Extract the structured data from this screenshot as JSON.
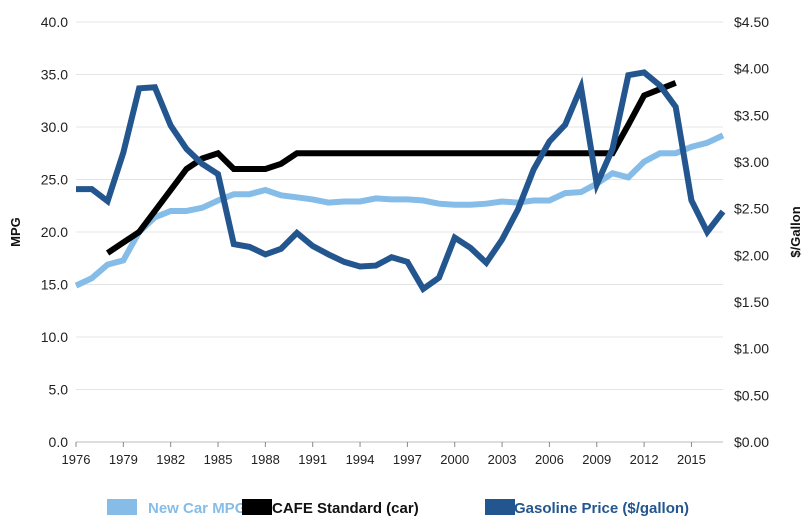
{
  "chart_data": {
    "type": "line",
    "title": "",
    "xlabel": "",
    "ylabel": "MPG",
    "y2label": "$/Gallon",
    "xlim": [
      1976,
      2017
    ],
    "ylim": [
      0,
      40
    ],
    "y2lim": [
      0,
      4.5
    ],
    "grid": true,
    "legend_position": "bottom",
    "x_ticks": [
      "1976",
      "1979",
      "1982",
      "1985",
      "1988",
      "1991",
      "1994",
      "1997",
      "2000",
      "2003",
      "2006",
      "2009",
      "2012",
      "2015"
    ],
    "y_ticks": [
      "0.0",
      "5.0",
      "10.0",
      "15.0",
      "20.0",
      "25.0",
      "30.0",
      "35.0",
      "40.0"
    ],
    "y2_ticks": [
      "$0.00",
      "$0.50",
      "$1.00",
      "$1.50",
      "$2.00",
      "$2.50",
      "$3.00",
      "$3.50",
      "$4.00",
      "$4.50"
    ],
    "series": [
      {
        "name": "New Car MPG",
        "axis": "left",
        "color": "#85bde8",
        "x": [
          1976,
          1977,
          1978,
          1979,
          1980,
          1981,
          1982,
          1983,
          1984,
          1985,
          1986,
          1987,
          1988,
          1989,
          1990,
          1991,
          1992,
          1993,
          1994,
          1995,
          1996,
          1997,
          1998,
          1999,
          2000,
          2001,
          2002,
          2003,
          2004,
          2005,
          2006,
          2007,
          2008,
          2009,
          2010,
          2011,
          2012,
          2013,
          2014,
          2015,
          2016,
          2017
        ],
        "values": [
          14.9,
          15.6,
          16.9,
          17.3,
          20.0,
          21.4,
          22.0,
          22.0,
          22.3,
          23.0,
          23.6,
          23.6,
          24.0,
          23.5,
          23.3,
          23.1,
          22.8,
          22.9,
          22.9,
          23.2,
          23.1,
          23.1,
          23.0,
          22.7,
          22.6,
          22.6,
          22.7,
          22.9,
          22.8,
          23.0,
          23.0,
          23.7,
          23.8,
          24.6,
          25.6,
          25.2,
          26.7,
          27.5,
          27.5,
          28.1,
          28.5,
          29.2
        ]
      },
      {
        "name": "CAFE Standard (car)",
        "axis": "left",
        "color": "#000000",
        "x": [
          1978,
          1979,
          1980,
          1981,
          1982,
          1983,
          1984,
          1985,
          1986,
          1987,
          1988,
          1989,
          1990,
          1991,
          1992,
          1993,
          1994,
          1995,
          1996,
          1997,
          1998,
          1999,
          2000,
          2001,
          2002,
          2003,
          2004,
          2005,
          2006,
          2007,
          2008,
          2009,
          2010,
          2011,
          2012,
          2013,
          2014
        ],
        "values": [
          18.0,
          19.0,
          20.0,
          22.0,
          24.0,
          26.0,
          27.0,
          27.5,
          26.0,
          26.0,
          26.0,
          26.5,
          27.5,
          27.5,
          27.5,
          27.5,
          27.5,
          27.5,
          27.5,
          27.5,
          27.5,
          27.5,
          27.5,
          27.5,
          27.5,
          27.5,
          27.5,
          27.5,
          27.5,
          27.5,
          27.5,
          27.5,
          27.5,
          30.2,
          33.0,
          33.6,
          34.2
        ]
      },
      {
        "name": "Gasoline Price ($/gallon)",
        "axis": "right",
        "color": "#23568f",
        "x": [
          1976,
          1977,
          1978,
          1979,
          1980,
          1981,
          1982,
          1983,
          1984,
          1985,
          1986,
          1987,
          1988,
          1989,
          1990,
          1991,
          1992,
          1993,
          1994,
          1995,
          1996,
          1997,
          1998,
          1999,
          2000,
          2001,
          2002,
          2003,
          2004,
          2005,
          2006,
          2007,
          2008,
          2009,
          2010,
          2011,
          2012,
          2013,
          2014,
          2015,
          2016,
          2017
        ],
        "values": [
          2.71,
          2.71,
          2.58,
          3.1,
          3.79,
          3.8,
          3.39,
          3.14,
          2.98,
          2.87,
          2.12,
          2.09,
          2.01,
          2.07,
          2.24,
          2.1,
          2.01,
          1.93,
          1.88,
          1.89,
          1.98,
          1.93,
          1.64,
          1.76,
          2.19,
          2.08,
          1.92,
          2.17,
          2.49,
          2.92,
          3.22,
          3.4,
          3.8,
          2.76,
          3.14,
          3.93,
          3.96,
          3.82,
          3.59,
          2.59,
          2.25,
          2.47
        ]
      }
    ]
  }
}
